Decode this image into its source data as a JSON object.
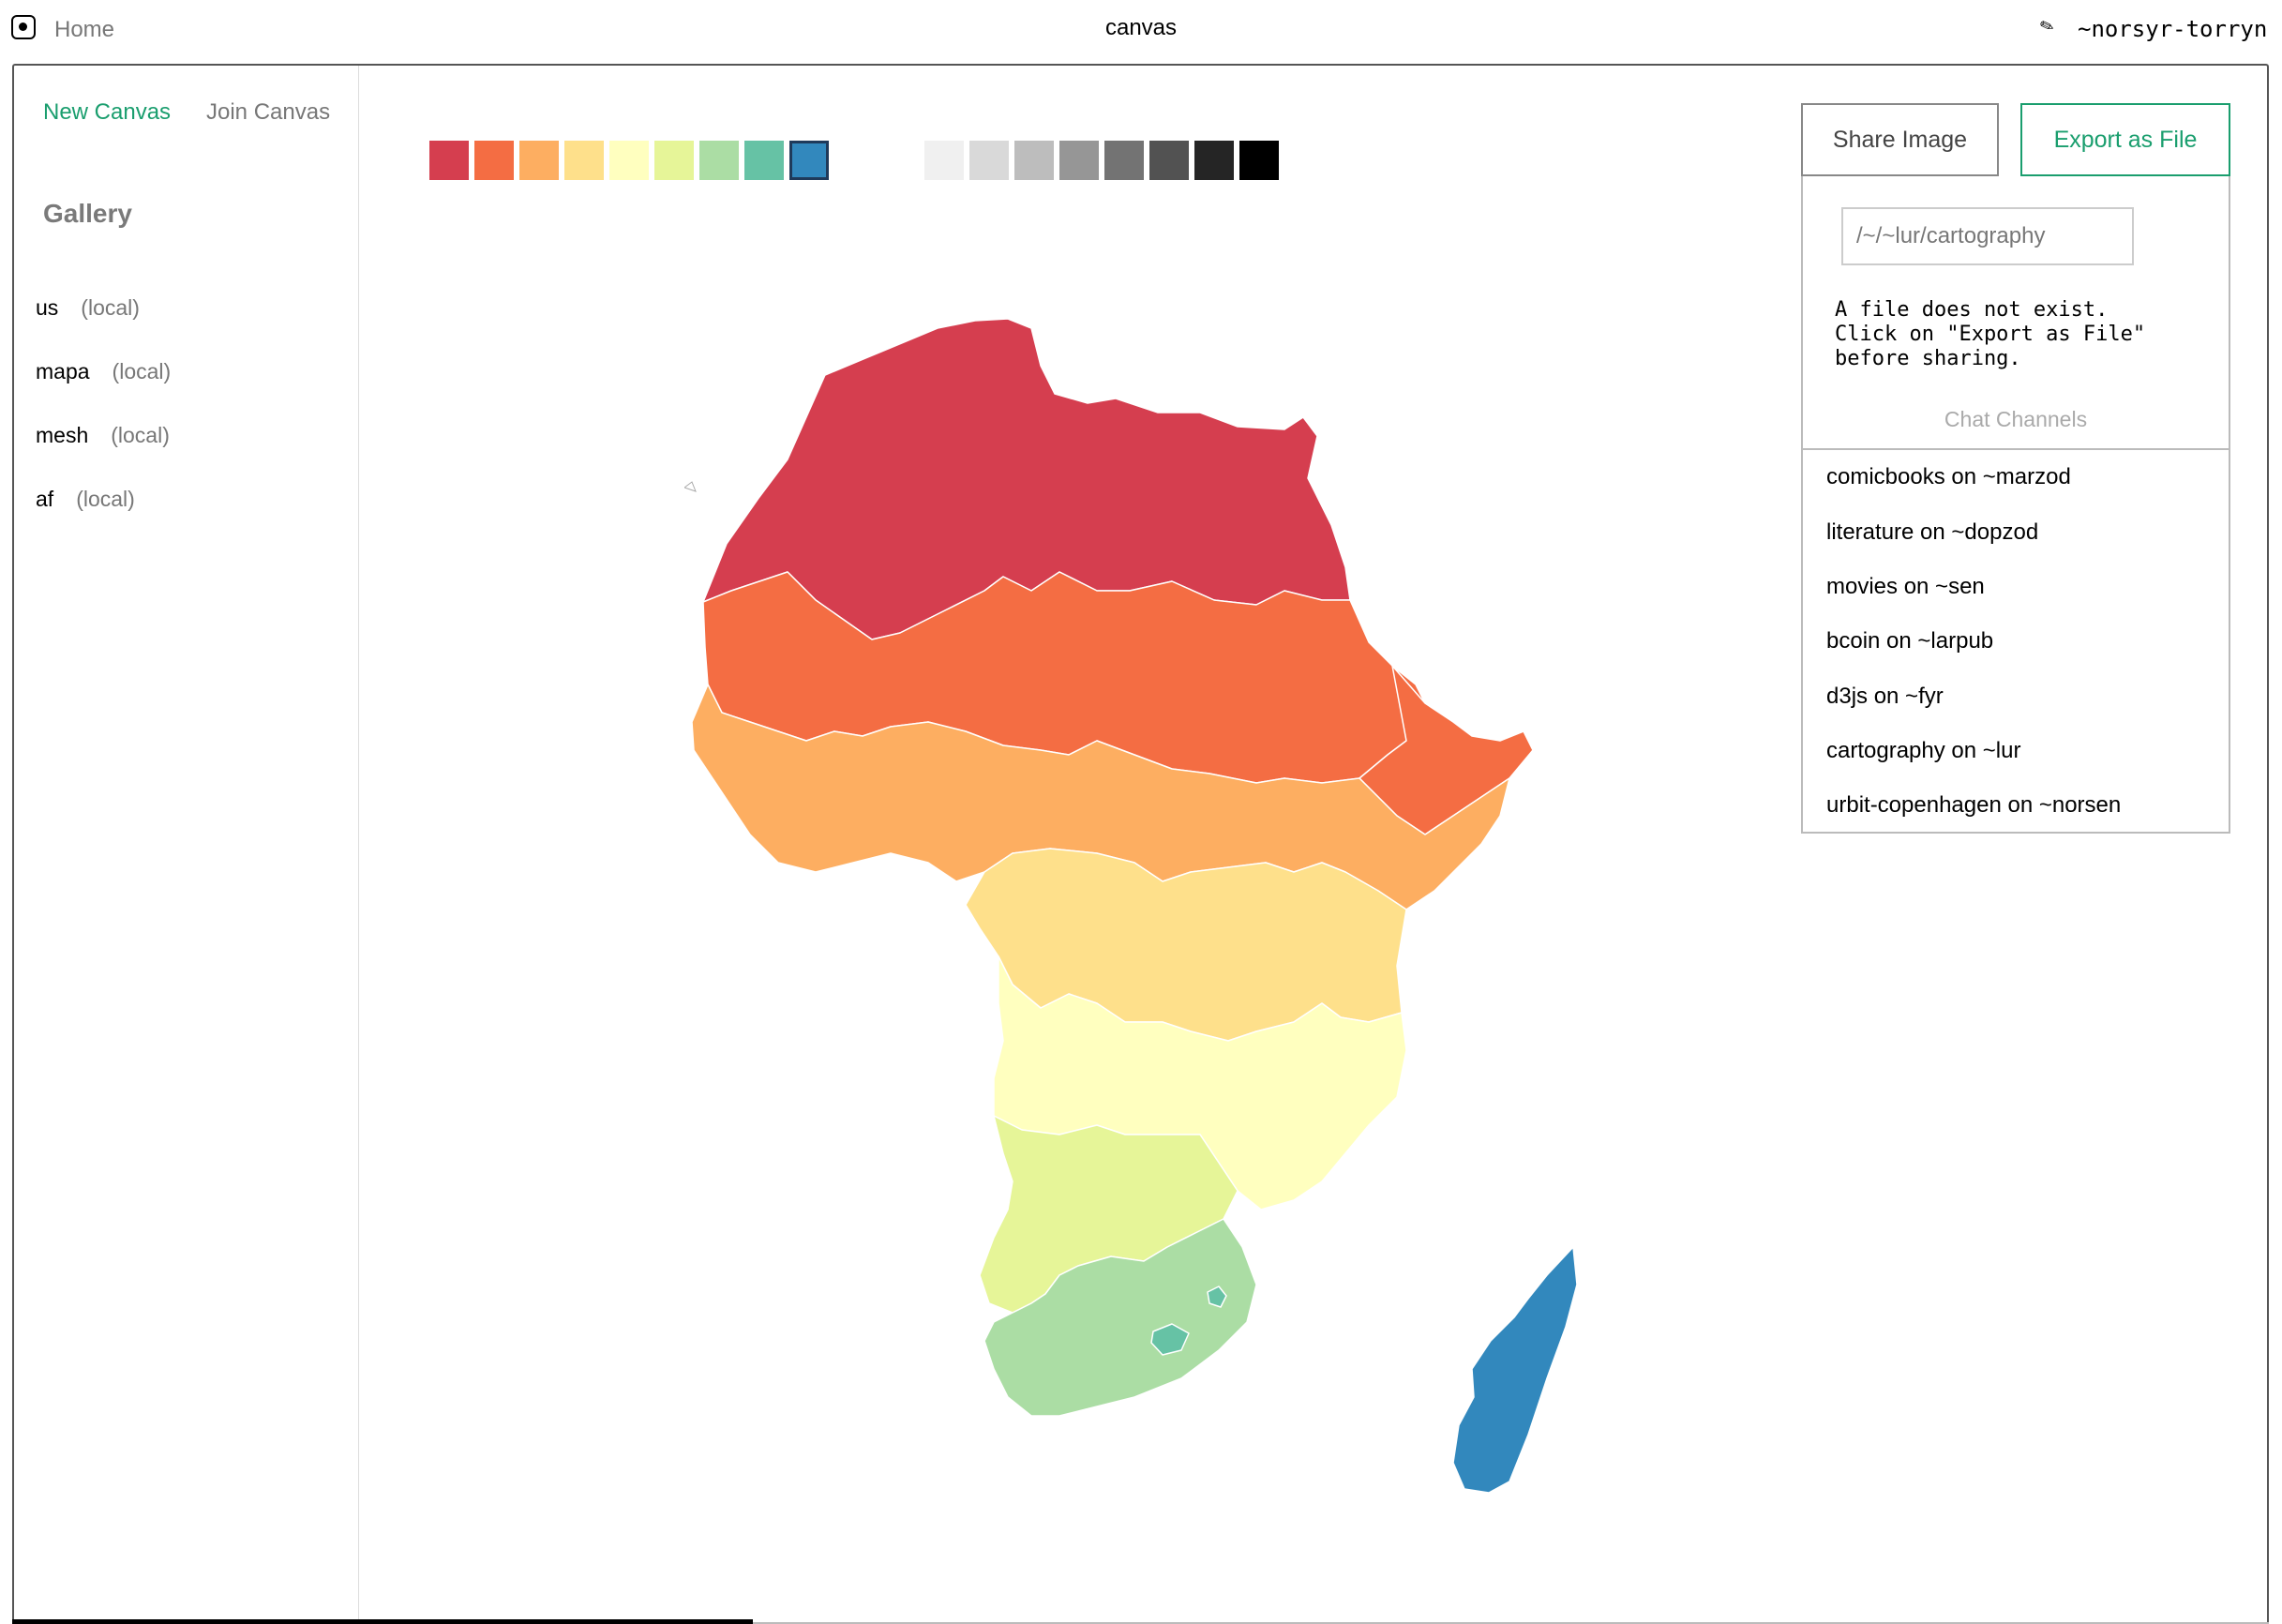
{
  "topbar": {
    "home_label": "Home",
    "title": "canvas",
    "ship": "~norsyr-torryn"
  },
  "sidebar": {
    "new_canvas": "New Canvas",
    "join_canvas": "Join Canvas",
    "gallery_title": "Gallery",
    "items": [
      {
        "name": "us",
        "tag": "(local)"
      },
      {
        "name": "mapa",
        "tag": "(local)"
      },
      {
        "name": "mesh",
        "tag": "(local)"
      },
      {
        "name": "af",
        "tag": "(local)"
      }
    ]
  },
  "palette": {
    "colors": [
      "#d53e4f",
      "#f46d43",
      "#fdae61",
      "#fee08b",
      "#ffffbf",
      "#e6f598",
      "#abdda4",
      "#66c2a5",
      "#3288bd"
    ],
    "selected": "#3288bd",
    "grays": [
      "#f0f0f0",
      "#d9d9d9",
      "#bdbdbd",
      "#969696",
      "#737373",
      "#525252",
      "#252525",
      "#000000"
    ]
  },
  "map": {
    "name": "af",
    "north_africa_color": "#d53e4f",
    "sahel_color": "#f46d43",
    "west_africa_color": "#fdae61",
    "central_africa_color": "#fee08b",
    "angola_zambia_color": "#ffffbf",
    "namibia_botswana_color": "#e6f598",
    "south_africa_color": "#abdda4",
    "lesotho_swaziland_color": "#66c2a5",
    "madagascar_color": "#3288bd"
  },
  "actions": {
    "share": "Share Image",
    "export": "Export as File"
  },
  "share_panel": {
    "path_value": "/~/~lur/cartography",
    "message": "A file does not exist.\nClick on \"Export as File\"\nbefore sharing.",
    "chat_title": "Chat Channels",
    "channels": [
      "comicbooks on ~marzod",
      "literature on ~dopzod",
      "movies on ~sen",
      "bcoin on ~larpub",
      "d3js on ~fyr",
      "cartography on ~lur",
      "urbit-copenhagen on ~norsen"
    ]
  }
}
